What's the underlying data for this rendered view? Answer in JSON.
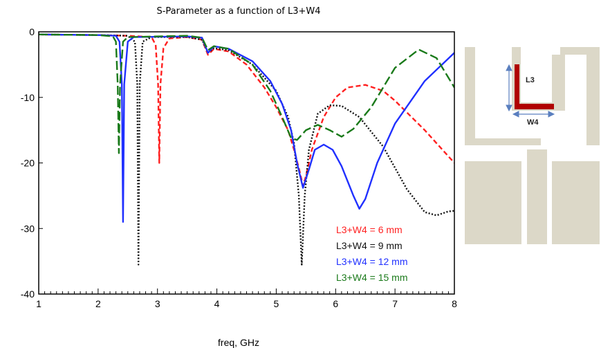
{
  "chart_data": {
    "type": "line",
    "title": "S-Parameter as a function of L3+W4",
    "xlabel": "freq, GHz",
    "ylabel": "",
    "xlim": [
      1,
      8
    ],
    "ylim": [
      -40,
      0
    ],
    "x_ticks": [
      "1",
      "2",
      "3",
      "4",
      "5",
      "6",
      "7",
      "8"
    ],
    "y_ticks": [
      "0",
      "-10",
      "-20",
      "-30",
      "-40"
    ],
    "grid": false,
    "legend_position": "bottom-right",
    "series": [
      {
        "name": "L3+W4 = 6 mm",
        "color": "#ff2020",
        "style": "dashed",
        "points": [
          [
            1,
            -0.4
          ],
          [
            2,
            -0.5
          ],
          [
            2.5,
            -0.6
          ],
          [
            2.9,
            -0.8
          ],
          [
            2.97,
            -2
          ],
          [
            3.01,
            -8
          ],
          [
            3.03,
            -20
          ],
          [
            3.05,
            -8
          ],
          [
            3.1,
            -2.5
          ],
          [
            3.2,
            -1
          ],
          [
            3.5,
            -0.8
          ],
          [
            3.75,
            -1.2
          ],
          [
            3.85,
            -3.5
          ],
          [
            3.95,
            -2.6
          ],
          [
            4.2,
            -3
          ],
          [
            4.5,
            -5
          ],
          [
            4.8,
            -8.5
          ],
          [
            5.0,
            -11.5
          ],
          [
            5.2,
            -15
          ],
          [
            5.3,
            -18
          ],
          [
            5.4,
            -21.5
          ],
          [
            5.45,
            -23.5
          ],
          [
            5.5,
            -22
          ],
          [
            5.6,
            -18
          ],
          [
            5.8,
            -13
          ],
          [
            6.0,
            -10
          ],
          [
            6.2,
            -8.5
          ],
          [
            6.5,
            -8.1
          ],
          [
            6.8,
            -9
          ],
          [
            7.0,
            -10.5
          ],
          [
            7.5,
            -15
          ],
          [
            8.0,
            -20
          ]
        ]
      },
      {
        "name": "L3+W4 = 9 mm",
        "color": "#111111",
        "style": "dotted",
        "points": [
          [
            1,
            -0.4
          ],
          [
            2,
            -0.5
          ],
          [
            2.5,
            -0.6
          ],
          [
            2.62,
            -1.5
          ],
          [
            2.66,
            -8
          ],
          [
            2.68,
            -35.5
          ],
          [
            2.7,
            -8
          ],
          [
            2.75,
            -1.5
          ],
          [
            2.9,
            -0.8
          ],
          [
            3.5,
            -0.8
          ],
          [
            3.75,
            -1.2
          ],
          [
            3.85,
            -3.2
          ],
          [
            3.95,
            -2.5
          ],
          [
            4.2,
            -2.8
          ],
          [
            4.6,
            -5
          ],
          [
            5.0,
            -9
          ],
          [
            5.2,
            -13
          ],
          [
            5.3,
            -17
          ],
          [
            5.38,
            -25
          ],
          [
            5.43,
            -35.5
          ],
          [
            5.48,
            -25
          ],
          [
            5.55,
            -18
          ],
          [
            5.7,
            -12.5
          ],
          [
            5.9,
            -11.2
          ],
          [
            6.1,
            -11.3
          ],
          [
            6.4,
            -13
          ],
          [
            6.8,
            -17.5
          ],
          [
            7.2,
            -24
          ],
          [
            7.5,
            -27.5
          ],
          [
            7.7,
            -28
          ],
          [
            7.9,
            -27.4
          ],
          [
            8.0,
            -27.3
          ]
        ]
      },
      {
        "name": "L3+W4 = 12 mm",
        "color": "#2030ff",
        "style": "solid",
        "points": [
          [
            1,
            -0.4
          ],
          [
            2,
            -0.5
          ],
          [
            2.3,
            -0.6
          ],
          [
            2.36,
            -1.5
          ],
          [
            2.4,
            -8
          ],
          [
            2.42,
            -29
          ],
          [
            2.44,
            -8
          ],
          [
            2.5,
            -1.5
          ],
          [
            2.6,
            -0.8
          ],
          [
            3.5,
            -0.7
          ],
          [
            3.75,
            -0.9
          ],
          [
            3.85,
            -3.2
          ],
          [
            3.95,
            -2.2
          ],
          [
            4.2,
            -2.6
          ],
          [
            4.6,
            -4.5
          ],
          [
            4.9,
            -7.5
          ],
          [
            5.1,
            -11
          ],
          [
            5.25,
            -15
          ],
          [
            5.35,
            -20
          ],
          [
            5.45,
            -23.8
          ],
          [
            5.55,
            -21
          ],
          [
            5.65,
            -18
          ],
          [
            5.8,
            -17.2
          ],
          [
            5.95,
            -18
          ],
          [
            6.1,
            -20.5
          ],
          [
            6.3,
            -25
          ],
          [
            6.4,
            -27
          ],
          [
            6.5,
            -25.5
          ],
          [
            6.7,
            -20
          ],
          [
            7.0,
            -14
          ],
          [
            7.5,
            -7.5
          ],
          [
            8.0,
            -3.2
          ]
        ]
      },
      {
        "name": "L3+W4 = 15 mm",
        "color": "#1a7a1a",
        "style": "longdash",
        "points": [
          [
            1,
            -0.4
          ],
          [
            2,
            -0.5
          ],
          [
            2.25,
            -0.7
          ],
          [
            2.3,
            -1.5
          ],
          [
            2.33,
            -8
          ],
          [
            2.35,
            -18.5
          ],
          [
            2.37,
            -8
          ],
          [
            2.42,
            -1.5
          ],
          [
            2.5,
            -0.8
          ],
          [
            3.5,
            -0.6
          ],
          [
            3.75,
            -0.9
          ],
          [
            3.85,
            -2.8
          ],
          [
            3.95,
            -2.2
          ],
          [
            4.2,
            -2.6
          ],
          [
            4.6,
            -5
          ],
          [
            4.9,
            -9
          ],
          [
            5.1,
            -13
          ],
          [
            5.25,
            -16.2
          ],
          [
            5.35,
            -16.5
          ],
          [
            5.5,
            -15
          ],
          [
            5.7,
            -14.2
          ],
          [
            5.9,
            -15
          ],
          [
            6.1,
            -16
          ],
          [
            6.3,
            -14.8
          ],
          [
            6.6,
            -11.5
          ],
          [
            7.0,
            -5.5
          ],
          [
            7.4,
            -2.7
          ],
          [
            7.7,
            -4
          ],
          [
            8.0,
            -8.5
          ]
        ]
      }
    ]
  },
  "inset": {
    "l3_label": "L3",
    "w4_label": "W4",
    "colors": {
      "substrate": "#dcd8c8",
      "strip": "#b00000",
      "arrow": "#5a7fbf"
    }
  }
}
